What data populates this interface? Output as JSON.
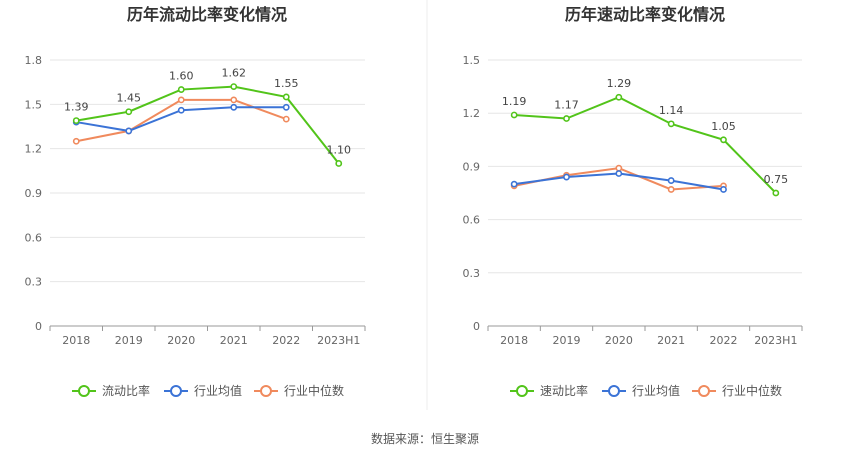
{
  "source_text": "数据来源：恒生聚源",
  "chart_data": [
    {
      "type": "line",
      "title": "历年流动比率变化情况",
      "categories": [
        "2018",
        "2019",
        "2020",
        "2021",
        "2022",
        "2023H1"
      ],
      "ylim": [
        0,
        1.8
      ],
      "yticks": [
        "0",
        "0.3",
        "0.6",
        "0.9",
        "1.2",
        "1.5",
        "1.8"
      ],
      "legend_position": "bottom",
      "series": [
        {
          "name": "流动比率",
          "color": "#52c41a",
          "values": [
            1.39,
            1.45,
            1.6,
            1.62,
            1.55,
            1.1
          ],
          "labels": [
            "1.39",
            "1.45",
            "1.60",
            "1.62",
            "1.55",
            "1.10"
          ]
        },
        {
          "name": "行业均值",
          "color": "#3b73d6",
          "values": [
            1.38,
            1.32,
            1.46,
            1.48,
            1.48,
            null
          ]
        },
        {
          "name": "行业中位数",
          "color": "#f08a5d",
          "values": [
            1.25,
            1.32,
            1.53,
            1.53,
            1.4,
            null
          ]
        }
      ]
    },
    {
      "type": "line",
      "title": "历年速动比率变化情况",
      "categories": [
        "2018",
        "2019",
        "2020",
        "2021",
        "2022",
        "2023H1"
      ],
      "ylim": [
        0,
        1.5
      ],
      "yticks": [
        "0",
        "0.3",
        "0.6",
        "0.9",
        "1.2",
        "1.5"
      ],
      "legend_position": "bottom",
      "series": [
        {
          "name": "速动比率",
          "color": "#52c41a",
          "values": [
            1.19,
            1.17,
            1.29,
            1.14,
            1.05,
            0.75
          ],
          "labels": [
            "1.19",
            "1.17",
            "1.29",
            "1.14",
            "1.05",
            "0.75"
          ]
        },
        {
          "name": "行业均值",
          "color": "#3b73d6",
          "values": [
            0.8,
            0.84,
            0.86,
            0.82,
            0.77,
            null
          ]
        },
        {
          "name": "行业中位数",
          "color": "#f08a5d",
          "values": [
            0.79,
            0.85,
            0.89,
            0.77,
            0.79,
            null
          ]
        }
      ]
    }
  ]
}
